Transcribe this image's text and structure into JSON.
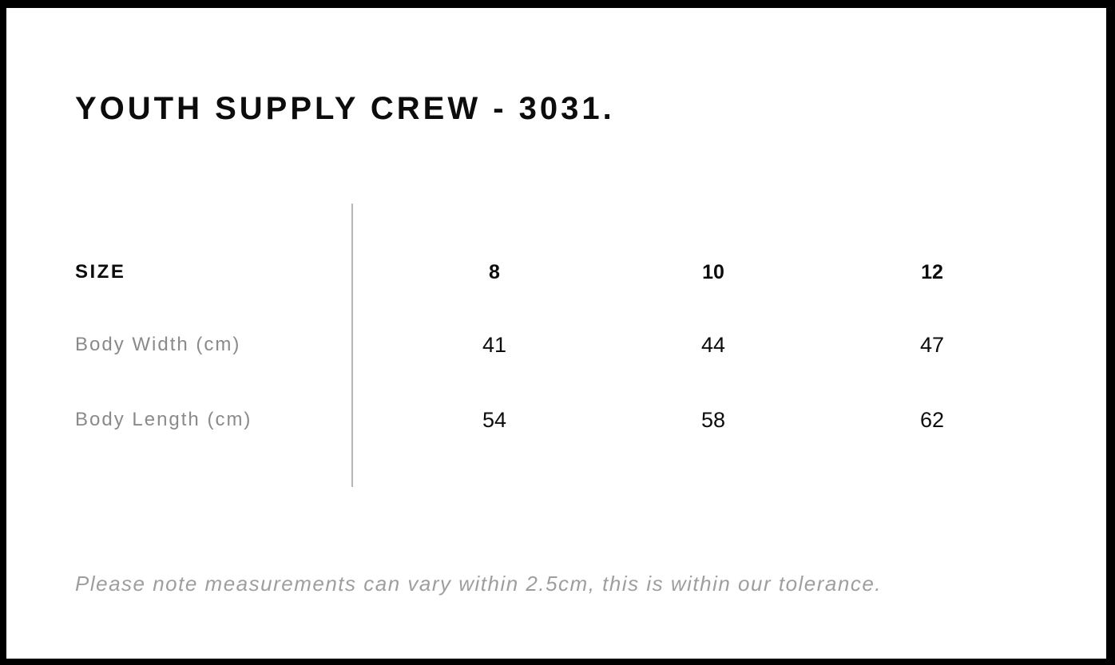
{
  "page": {
    "title": "YOUTH SUPPLY CREW - 3031.",
    "note": "Please note measurements can vary within 2.5cm, this is within our tolerance."
  },
  "table": {
    "header_label": "SIZE",
    "sizes": [
      "8",
      "10",
      "12"
    ],
    "rows": [
      {
        "label": "Body Width (cm)",
        "values": [
          "41",
          "44",
          "47"
        ]
      },
      {
        "label": "Body Length (cm)",
        "values": [
          "54",
          "58",
          "62"
        ]
      }
    ]
  },
  "colors": {
    "background": "#ffffff",
    "frame_border": "#000000",
    "text_primary": "#0c0c0c",
    "text_secondary": "#8a8a8a",
    "note_gray": "#9e9e9e",
    "divider": "#b5b5b5"
  }
}
